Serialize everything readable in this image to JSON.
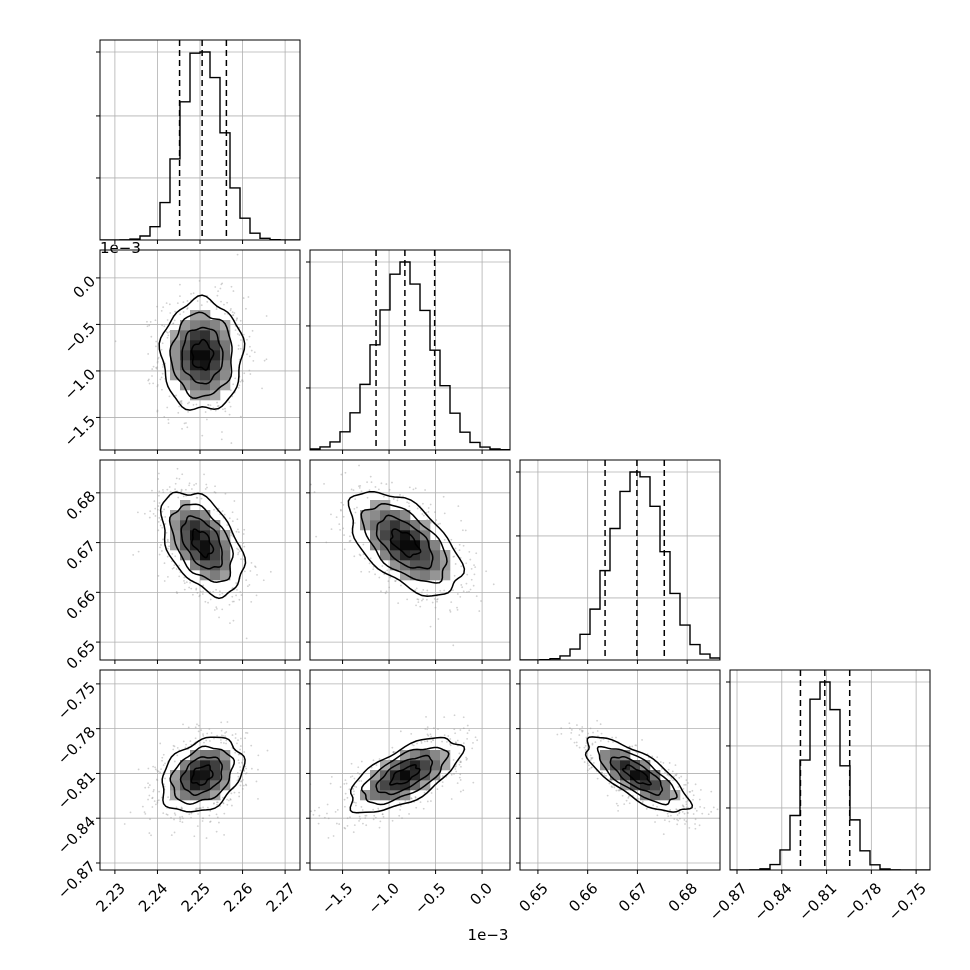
{
  "chart_data": {
    "type": "scatter",
    "title": "",
    "grid": true,
    "n_bins_hist": 20,
    "exponent_labels": {
      "row_1_y": "1e−3",
      "col_1_x": "1e−3"
    },
    "parameters": [
      {
        "median": 2.2505,
        "sigma": 0.0048,
        "quantiles": [
          2.2452,
          2.2505,
          2.2562
        ],
        "range": [
          2.2265,
          2.2735
        ],
        "ticks": [
          2.23,
          2.24,
          2.25,
          2.26,
          2.27
        ],
        "tick_labels": [
          "2.23",
          "2.24",
          "2.25",
          "2.26",
          "2.27"
        ]
      },
      {
        "median": -0.83,
        "sigma": 0.3,
        "quantiles": [
          -1.14,
          -0.83,
          -0.51
        ],
        "range": [
          -1.85,
          0.3
        ],
        "ticks": [
          -1.5,
          -1.0,
          -0.5,
          0.0
        ],
        "tick_labels": [
          "−1.5",
          "−1.0",
          "−0.5",
          "0.0"
        ]
      },
      {
        "median": 0.6699,
        "sigma": 0.0052,
        "quantiles": [
          0.6635,
          0.6699,
          0.6754
        ],
        "range": [
          0.6464,
          0.6866
        ],
        "ticks": [
          0.65,
          0.66,
          0.67,
          0.68
        ],
        "tick_labels": [
          "0.65",
          "0.66",
          "0.67",
          "0.68"
        ]
      },
      {
        "median": -0.8112,
        "sigma": 0.0125,
        "quantiles": [
          -0.8275,
          -0.8112,
          -0.7945
        ],
        "range": [
          -0.8747,
          -0.7407
        ],
        "ticks": [
          -0.87,
          -0.84,
          -0.81,
          -0.78,
          -0.75
        ],
        "tick_labels": [
          "−0.87",
          "−0.84",
          "−0.81",
          "−0.78",
          "−0.75"
        ]
      }
    ],
    "correlations": [
      [
        1.0,
        0.0,
        -0.45,
        0.3
      ],
      [
        0.0,
        1.0,
        -0.55,
        0.65
      ],
      [
        -0.45,
        -0.55,
        1.0,
        -0.75
      ],
      [
        0.3,
        0.65,
        -0.75,
        1.0
      ]
    ],
    "contour_levels_sigma": [
      0.5,
      1.0,
      1.5,
      2.0
    ]
  }
}
